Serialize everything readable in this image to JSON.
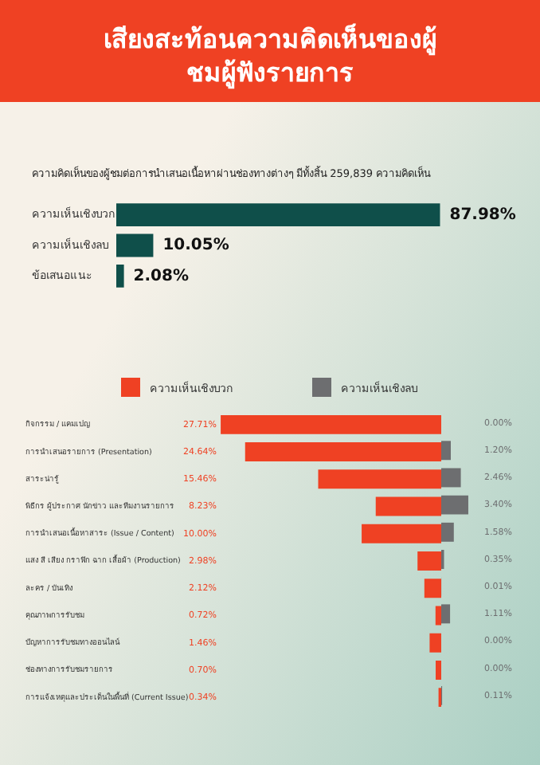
{
  "chart_data": [
    {
      "type": "bar",
      "orientation": "horizontal",
      "title": "เสียงสะท้อนความคิดเห็นของผู้ชมผู้ฟังรายการ",
      "subtitle": "ความคิดเห็นของผู้ชมต่อการนำเสนอเนื้อหาผ่านช่องทางต่างๆ มีทั้งสิ้น 259,839 ความคิดเห็น",
      "categories": [
        "ความเห็นเชิงบวก",
        "ความเห็นเชิงลบ",
        "ข้อเสนอแนะ"
      ],
      "values": [
        87.98,
        10.05,
        2.08
      ],
      "color": "#0f4f4a",
      "value_labels": [
        "87.98%",
        "10.05%",
        "2.08%"
      ],
      "tick_labels": "y",
      "legend": false
    },
    {
      "type": "bar",
      "orientation": "horizontal",
      "categories": [
        "กิจกรรม / แคมเปญ",
        "การนำเสนอรายการ (Presentation)",
        "สาระน่ารู้",
        "พิธีกร ผู้ประกาศ นักข่าว และทีมงานรายการ",
        "การนำเสนอเนื้อหาสาระ (Issue / Content)",
        "แสง สี เสียง กราฟิก ฉาก เสื้อผ้า (Production)",
        "ละคร / บันเทิง",
        "คุณภาพการรับชม",
        "ปัญหาการรับชมทางออนไลน์",
        "ช่องทางการรับชมรายการ",
        "การแจ้งเหตุและประเด็นในพื้นที่ (Current Issue)"
      ],
      "series": [
        {
          "name": "ความเห็นเชิงบวก",
          "color": "#ef4123",
          "values": [
            27.71,
            24.64,
            15.46,
            8.23,
            10.0,
            2.98,
            2.12,
            0.72,
            1.46,
            0.7,
            0.34
          ],
          "value_labels": [
            "27.71%",
            "24.64%",
            "15.46%",
            "8.23%",
            "10.00%",
            "2.98%",
            "2.12%",
            "0.72%",
            "1.46%",
            "0.70%",
            "0.34%"
          ]
        }
      ],
      "tick_labels": "y",
      "legend": "top"
    },
    {
      "type": "bar",
      "orientation": "horizontal",
      "categories": [
        null,
        null,
        null,
        null,
        null,
        null,
        null,
        null,
        null,
        null,
        null
      ],
      "series": [
        {
          "name": "ความเห็นเชิงลบ",
          "color": "#6d6e70",
          "values": [
            0.0,
            1.2,
            2.46,
            3.4,
            1.58,
            0.35,
            0.01,
            1.11,
            0.0,
            0.0,
            0.11
          ],
          "value_labels": [
            "0.00%",
            "1.20%",
            "2.46%",
            "3.40%",
            "1.58%",
            "0.35%",
            "0.01%",
            "1.11%",
            "0.00%",
            "0.00%",
            "0.11%"
          ]
        }
      ],
      "tick_labels": false,
      "legend": "top"
    }
  ]
}
